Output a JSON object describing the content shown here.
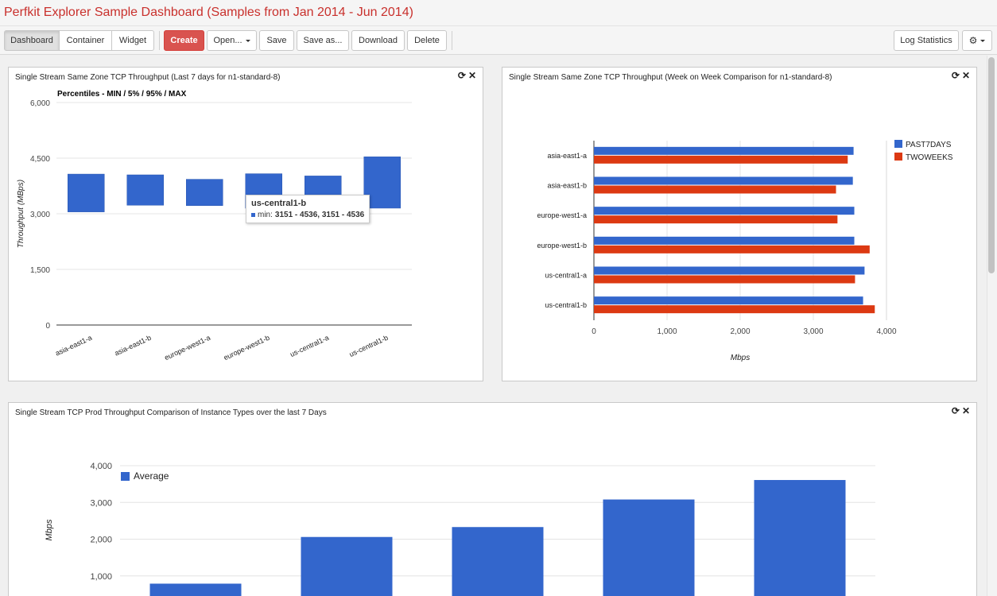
{
  "app": {
    "title": "Perfkit Explorer Sample Dashboard (Samples from Jan 2014 - Jun 2014)"
  },
  "toolbar": {
    "dashboard": "Dashboard",
    "container": "Container",
    "widget": "Widget",
    "create": "Create",
    "open": "Open...",
    "save": "Save",
    "save_as": "Save as...",
    "download": "Download",
    "delete": "Delete",
    "log_statistics": "Log Statistics"
  },
  "colors": {
    "blue": "#3366cc",
    "red": "#dc3912",
    "accent": "#d9534f"
  },
  "icons": {
    "refresh": "refresh-icon",
    "close": "close-icon",
    "gear": "gear-icon"
  },
  "widgets": [
    {
      "title": "Single Stream Same Zone TCP Throughput (Last 7 days for n1-standard-8)",
      "tooltip": {
        "title": "us-central1-b",
        "label": "min:",
        "value": "3151 - 4536, 3151 - 4536"
      }
    },
    {
      "title": "Single Stream Same Zone TCP Throughput (Week on Week Comparison for n1-standard-8)"
    },
    {
      "title": "Single Stream TCP Prod Throughput Comparison of Instance Types over the last 7 Days"
    }
  ],
  "chart_data": [
    {
      "type": "candlestick",
      "title": "Percentiles - MIN / 5% / 95% / MAX",
      "ylabel": "Throughput (MBps)",
      "ylim": [
        0,
        6000
      ],
      "yticks": [
        0,
        1500,
        3000,
        4500,
        6000
      ],
      "ytick_labels": [
        "0",
        "1,500",
        "3,000",
        "4,500",
        "6,000"
      ],
      "categories": [
        "asia-east1-a",
        "asia-east1-b",
        "europe-west1-a",
        "europe-west1-b",
        "us-central1-a",
        "us-central1-b"
      ],
      "low": [
        3050,
        3230,
        3220,
        3150,
        3100,
        3151
      ],
      "high": [
        4070,
        4050,
        3930,
        4080,
        4020,
        4536
      ],
      "grid": true
    },
    {
      "type": "bar",
      "orientation": "horizontal",
      "xlabel": "Mbps",
      "xlim": [
        0,
        4000
      ],
      "xticks": [
        0,
        1000,
        2000,
        3000,
        4000
      ],
      "xtick_labels": [
        "0",
        "1,000",
        "2,000",
        "3,000",
        "4,000"
      ],
      "categories": [
        "asia-east1-a",
        "asia-east1-b",
        "europe-west1-a",
        "europe-west1-b",
        "us-central1-a",
        "us-central1-b"
      ],
      "series": [
        {
          "name": "PAST7DAYS",
          "values": [
            3550,
            3540,
            3560,
            3560,
            3700,
            3680
          ]
        },
        {
          "name": "TWOWEEKS",
          "values": [
            3470,
            3310,
            3330,
            3770,
            3570,
            3840
          ]
        }
      ],
      "legend": "right"
    },
    {
      "type": "bar",
      "ylabel": "Mbps",
      "ylim": [
        0,
        4000
      ],
      "yticks": [
        1000,
        2000,
        3000,
        4000
      ],
      "ytick_labels": [
        "1,000",
        "2,000",
        "3,000",
        "4,000"
      ],
      "series": [
        {
          "name": "Average",
          "values": [
            790,
            2060,
            2330,
            3080,
            3610
          ]
        }
      ],
      "legend": "top-left"
    }
  ]
}
